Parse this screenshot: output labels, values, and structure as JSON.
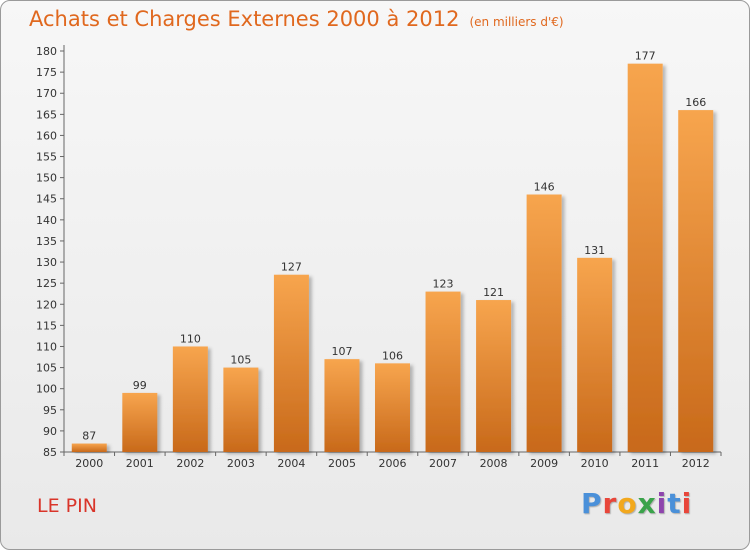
{
  "header": {
    "title": "Achats et Charges Externes 2000 à 2012",
    "subtitle": "(en milliers d'€)"
  },
  "footer": {
    "commune": "LE PIN",
    "logo_text": "Proxiti",
    "logo_colors": [
      "#4a90d9",
      "#e8463a",
      "#f2a81d",
      "#3aa34a",
      "#8e44ad",
      "#4a90d9",
      "#e8463a"
    ]
  },
  "chart_data": {
    "type": "bar",
    "categories": [
      "2000",
      "2001",
      "2002",
      "2003",
      "2004",
      "2005",
      "2006",
      "2007",
      "2008",
      "2009",
      "2010",
      "2011",
      "2012"
    ],
    "values": [
      87,
      99,
      110,
      105,
      127,
      107,
      106,
      123,
      121,
      146,
      131,
      177,
      166
    ],
    "title": "Achats et Charges Externes 2000 à 2012",
    "xlabel": "",
    "ylabel": "",
    "ylim": [
      85,
      180
    ],
    "yticks": [
      85,
      90,
      95,
      100,
      105,
      110,
      115,
      120,
      125,
      130,
      135,
      140,
      145,
      150,
      155,
      160,
      165,
      170,
      175,
      180
    ],
    "grid": false,
    "bar_color_top": "#f7a54e",
    "bar_color_bottom": "#c8691a"
  }
}
